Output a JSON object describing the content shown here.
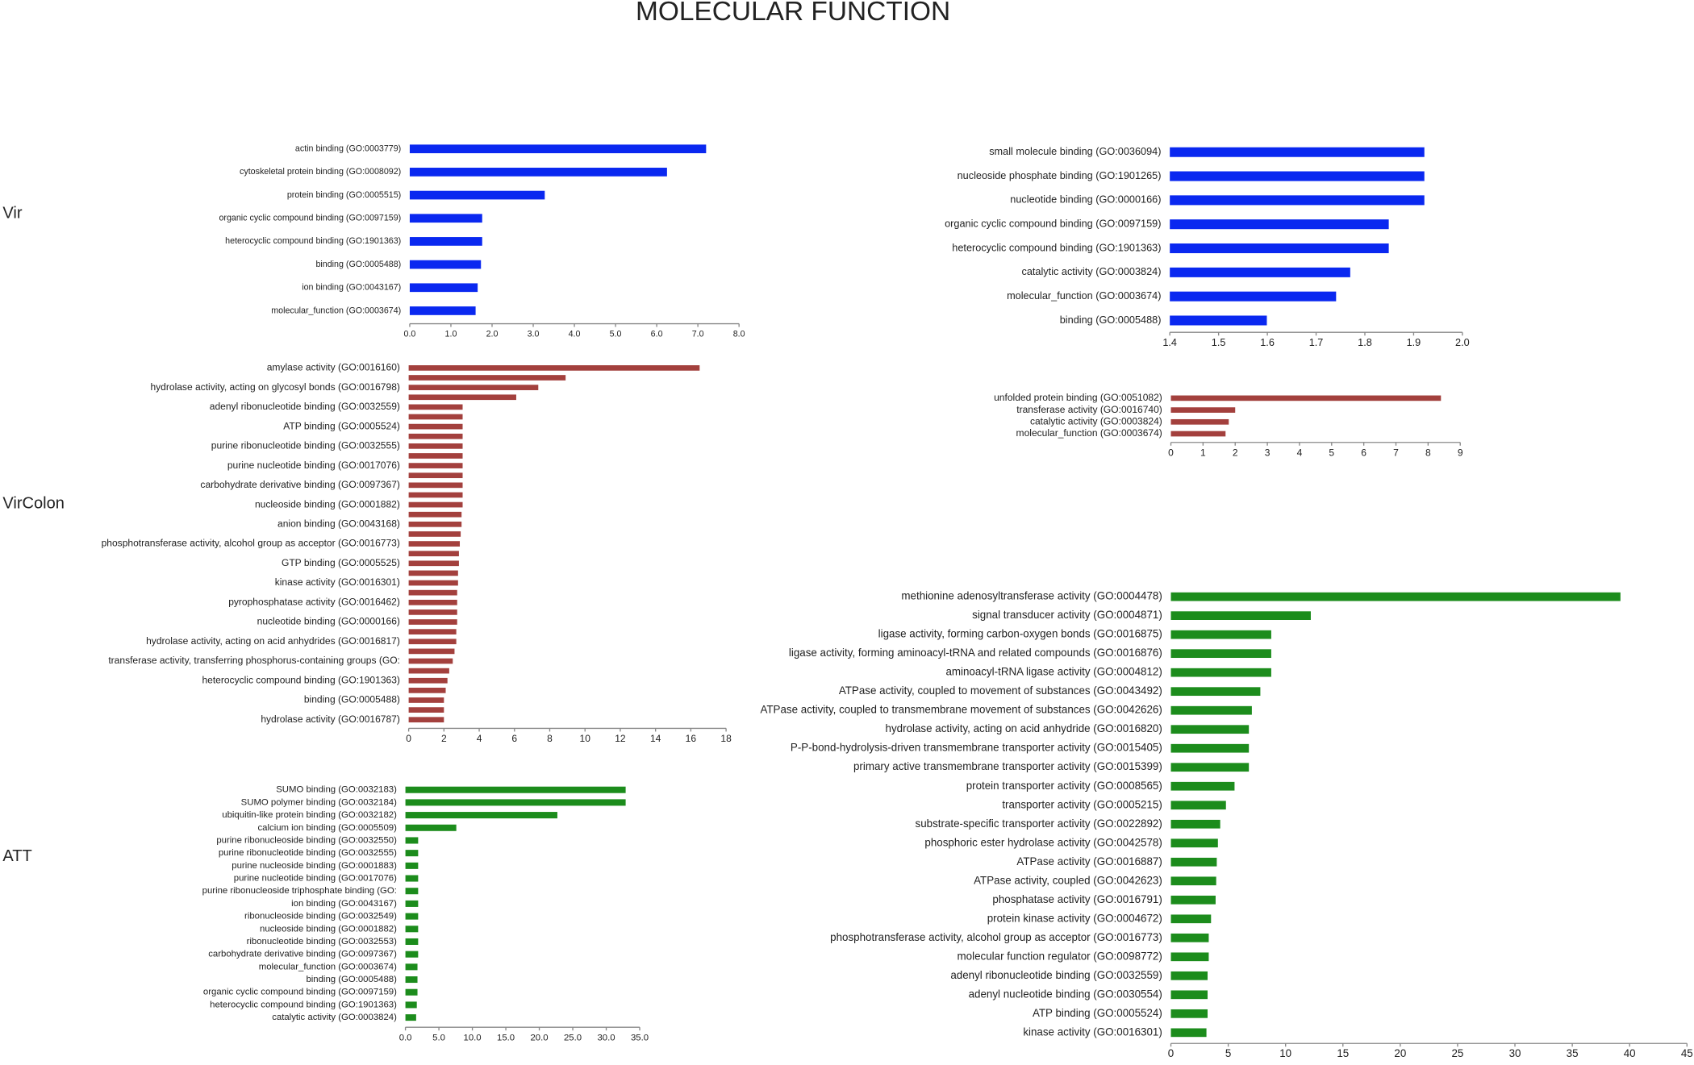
{
  "title": "MOLECULAR FUNCTION",
  "groups": [
    "Vir",
    "VirColon",
    "ATT"
  ],
  "chart_data": [
    {
      "type": "barh",
      "color": "#0a28f0",
      "categories": [
        "actin binding (GO:0003779)",
        "cytoskeletal protein binding (GO:0008092)",
        "protein binding (GO:0005515)",
        "organic cyclic compound binding (GO:0097159)",
        "heterocyclic compound binding (GO:1901363)",
        "binding (GO:0005488)",
        "ion binding (GO:0043167)",
        "molecular_function (GO:0003674)"
      ],
      "values": [
        7.2,
        6.25,
        3.28,
        1.76,
        1.76,
        1.73,
        1.65,
        1.6
      ],
      "xlim": [
        0,
        8
      ],
      "xticks": [
        {
          "value": 0,
          "label": "0.0"
        },
        {
          "value": 1,
          "label": "1.0"
        },
        {
          "value": 2,
          "label": "2.0"
        },
        {
          "value": 3,
          "label": "3.0"
        },
        {
          "value": 4,
          "label": "4.0"
        },
        {
          "value": 5,
          "label": "5.0"
        },
        {
          "value": 6,
          "label": "6.0"
        },
        {
          "value": 7,
          "label": "7.0"
        },
        {
          "value": 8,
          "label": "8.0"
        }
      ]
    },
    {
      "type": "barh",
      "color": "#0a28f0",
      "categories": [
        "small molecule binding (GO:0036094)",
        "nucleoside phosphate binding (GO:1901265)",
        "nucleotide binding (GO:0000166)",
        "organic cyclic compound binding (GO:0097159)",
        "heterocyclic compound binding (GO:1901363)",
        "catalytic activity (GO:0003824)",
        "molecular_function (GO:0003674)",
        "binding (GO:0005488)"
      ],
      "values": [
        1.922,
        1.922,
        1.922,
        1.849,
        1.849,
        1.77,
        1.741,
        1.599
      ],
      "xlim": [
        1.4,
        2.0
      ],
      "xticks": [
        1.4,
        1.5,
        1.6,
        1.7,
        1.8,
        1.9,
        {
          "value": 2,
          "label": "2.0"
        }
      ]
    },
    {
      "type": "barh",
      "color": "#a3403d",
      "categories": [
        "amylase activity (GO:0016160)",
        null,
        "hydrolase activity, acting on glycosyl bonds (GO:0016798)",
        null,
        "adenyl ribonucleotide binding (GO:0032559)",
        null,
        "ATP binding (GO:0005524)",
        null,
        "purine ribonucleotide binding (GO:0032555)",
        null,
        "purine nucleotide binding (GO:0017076)",
        null,
        "carbohydrate derivative binding (GO:0097367)",
        null,
        "nucleoside binding (GO:0001882)",
        null,
        "anion binding (GO:0043168)",
        null,
        "phosphotransferase activity, alcohol group as acceptor (GO:0016773)",
        null,
        "GTP binding (GO:0005525)",
        null,
        "kinase activity (GO:0016301)",
        null,
        "pyrophosphatase activity (GO:0016462)",
        null,
        "nucleotide binding (GO:0000166)",
        null,
        "hydrolase activity, acting on acid anhydrides (GO:0016817)",
        null,
        "transferase activity, transferring phosphorus-containing groups (GO:",
        null,
        "heterocyclic compound binding (GO:1901363)",
        null,
        "binding (GO:0005488)",
        null,
        "hydrolase activity (GO:0016787)"
      ],
      "values": [
        16.5,
        8.9,
        7.35,
        6.1,
        3.06,
        3.06,
        3.06,
        3.06,
        3.06,
        3.06,
        3.06,
        3.06,
        3.06,
        3.06,
        3.06,
        3.0,
        3.0,
        2.95,
        2.9,
        2.85,
        2.85,
        2.8,
        2.8,
        2.75,
        2.75,
        2.75,
        2.75,
        2.7,
        2.7,
        2.6,
        2.5,
        2.3,
        2.2,
        2.1,
        2.0,
        2.0,
        2.0
      ],
      "xlim": [
        0,
        18
      ],
      "xticks": [
        0,
        2,
        4,
        6,
        8,
        10,
        12,
        14,
        16,
        18
      ]
    },
    {
      "type": "barh",
      "color": "#a3403d",
      "categories": [
        "unfolded protein binding (GO:0051082)",
        "transferase activity (GO:0016740)",
        "catalytic activity (GO:0003824)",
        "molecular_function (GO:0003674)"
      ],
      "values": [
        8.4,
        2.0,
        1.8,
        1.7
      ],
      "xlim": [
        0,
        9
      ],
      "xticks": [
        0,
        1,
        2,
        3,
        4,
        5,
        6,
        7,
        8,
        9
      ]
    },
    {
      "type": "barh",
      "color": "#1c8c1c",
      "categories": [
        "SUMO binding (GO:0032183)",
        "SUMO polymer binding (GO:0032184)",
        "ubiquitin-like protein binding (GO:0032182)",
        "calcium ion binding (GO:0005509)",
        "purine ribonucleoside binding (GO:0032550)",
        "purine ribonucleotide binding (GO:0032555)",
        "purine nucleoside binding (GO:0001883)",
        "purine nucleotide binding (GO:0017076)",
        "purine ribonucleoside triphosphate binding (GO:",
        "ion binding (GO:0043167)",
        "ribonucleoside binding (GO:0032549)",
        "nucleoside binding (GO:0001882)",
        "ribonucleotide binding (GO:0032553)",
        "carbohydrate derivative binding (GO:0097367)",
        "molecular_function (GO:0003674)",
        "binding (GO:0005488)",
        "organic cyclic compound binding (GO:0097159)",
        "heterocyclic compound binding (GO:1901363)",
        "catalytic activity (GO:0003824)"
      ],
      "values": [
        32.9,
        32.9,
        22.7,
        7.6,
        1.9,
        1.9,
        1.9,
        1.9,
        1.9,
        1.9,
        1.9,
        1.9,
        1.9,
        1.9,
        1.8,
        1.8,
        1.8,
        1.7,
        1.6
      ],
      "xlim": [
        0,
        35
      ],
      "xticks": [
        {
          "value": 0,
          "label": "0.0"
        },
        {
          "value": 5,
          "label": "5.0"
        },
        {
          "value": 10,
          "label": "10.0"
        },
        {
          "value": 15,
          "label": "15.0"
        },
        {
          "value": 20,
          "label": "20.0"
        },
        {
          "value": 25,
          "label": "25.0"
        },
        {
          "value": 30,
          "label": "30.0"
        },
        {
          "value": 35,
          "label": "35.0"
        }
      ]
    },
    {
      "type": "barh",
      "color": "#1c8c1c",
      "categories": [
        "methionine adenosyltransferase activity (GO:0004478)",
        "signal transducer activity (GO:0004871)",
        "ligase activity, forming carbon-oxygen bonds (GO:0016875)",
        "ligase activity, forming aminoacyl-tRNA and related compounds (GO:0016876)",
        "aminoacyl-tRNA ligase activity (GO:0004812)",
        "ATPase activity, coupled to movement of substances (GO:0043492)",
        "ATPase activity, coupled to transmembrane movement of substances (GO:0042626)",
        "hydrolase activity, acting on acid anhydride (GO:0016820)",
        "P-P-bond-hydrolysis-driven transmembrane transporter activity (GO:0015405)",
        "primary active transmembrane transporter activity (GO:0015399)",
        "protein transporter activity (GO:0008565)",
        "transporter activity (GO:0005215)",
        "substrate-specific transporter activity (GO:0022892)",
        "phosphoric ester hydrolase activity (GO:0042578)",
        "ATPase activity (GO:0016887)",
        "ATPase activity, coupled (GO:0042623)",
        "phosphatase activity (GO:0016791)",
        "protein kinase activity (GO:0004672)",
        "phosphotransferase activity, alcohol group as acceptor (GO:0016773)",
        "molecular function regulator (GO:0098772)",
        "adenyl ribonucleotide binding (GO:0032559)",
        "adenyl nucleotide binding (GO:0030554)",
        "ATP binding (GO:0005524)",
        "kinase activity (GO:0016301)"
      ],
      "values": [
        39.2,
        12.2,
        8.75,
        8.75,
        8.75,
        7.8,
        7.06,
        6.8,
        6.8,
        6.8,
        5.55,
        4.8,
        4.3,
        4.1,
        4.0,
        3.95,
        3.9,
        3.5,
        3.3,
        3.3,
        3.2,
        3.2,
        3.2,
        3.1
      ],
      "xlim": [
        0,
        45
      ],
      "xticks": [
        0,
        5,
        10,
        15,
        20,
        25,
        30,
        35,
        40,
        45
      ]
    }
  ]
}
